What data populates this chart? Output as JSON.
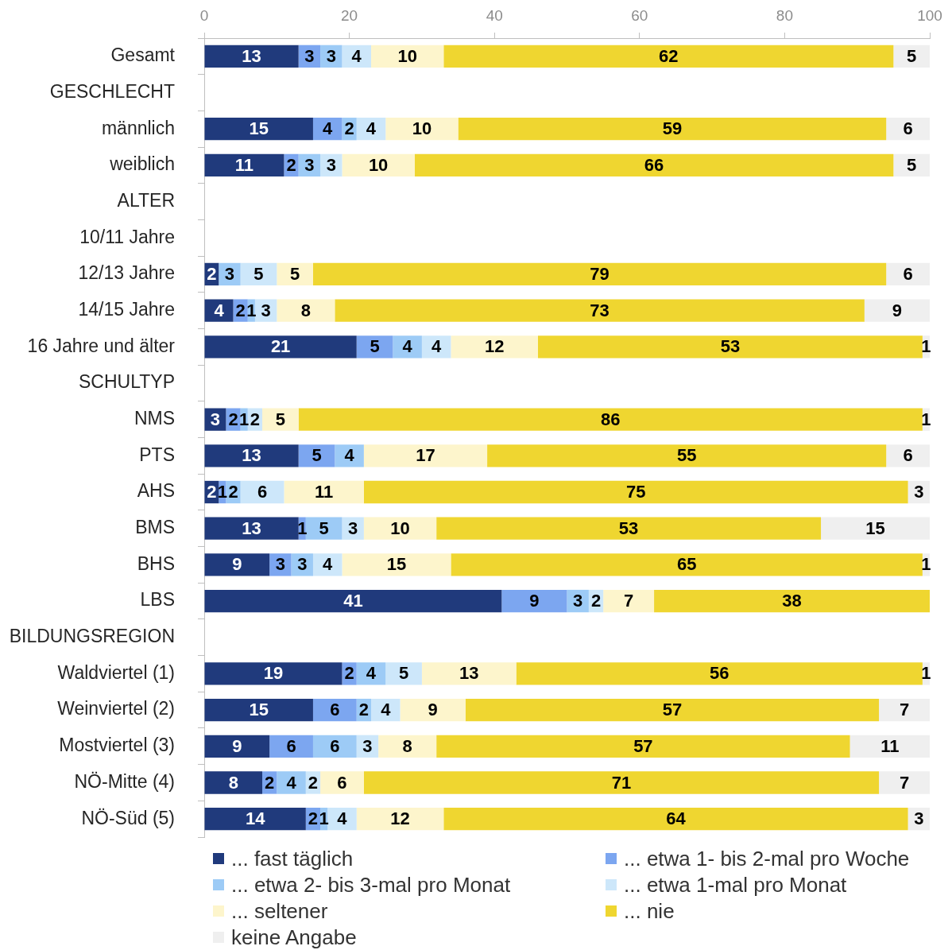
{
  "chart_data": {
    "type": "bar",
    "orientation": "horizontal",
    "stacked": true,
    "data_labels": true,
    "legend": "bottom",
    "categories": [
      "Gesamt",
      "GESCHLECHT",
      "männlich",
      "weiblich",
      "ALTER",
      "10/11 Jahre",
      "12/13 Jahre",
      "14/15 Jahre",
      "16 Jahre und älter",
      "SCHULTYP",
      "NMS",
      "PTS",
      "AHS",
      "BMS",
      "BHS",
      "LBS",
      "BILDUNGSREGION",
      "Waldviertel (1)",
      "Weinviertel (2)",
      "Mostviertel (3)",
      "NÖ-Mitte (4)",
      "NÖ-Süd (5)"
    ],
    "xlim": [
      0,
      100
    ],
    "xticks": [
      0,
      20,
      40,
      60,
      80,
      100
    ],
    "series": [
      {
        "name": "... fast täglich",
        "color": "#203a7c",
        "values": [
          13,
          null,
          15,
          11,
          null,
          null,
          2,
          4,
          21,
          null,
          3,
          13,
          2,
          13,
          9,
          41,
          null,
          19,
          15,
          9,
          8,
          14
        ]
      },
      {
        "name": "... etwa 1- bis 2-mal pro Woche",
        "color": "#7ca6f0",
        "values": [
          3,
          null,
          4,
          2,
          null,
          null,
          null,
          2,
          5,
          null,
          2,
          5,
          1,
          1,
          3,
          9,
          null,
          2,
          6,
          6,
          2,
          2
        ]
      },
      {
        "name": "... etwa 2- bis 3-mal pro Monat",
        "color": "#9dcbf6",
        "values": [
          3,
          null,
          2,
          3,
          null,
          null,
          3,
          1,
          4,
          null,
          1,
          4,
          2,
          5,
          3,
          3,
          null,
          4,
          2,
          6,
          4,
          1
        ]
      },
      {
        "name": "... etwa 1-mal pro Monat",
        "color": "#cde7fa",
        "values": [
          4,
          null,
          4,
          3,
          null,
          null,
          5,
          3,
          4,
          null,
          2,
          null,
          6,
          3,
          4,
          2,
          null,
          5,
          4,
          3,
          2,
          4
        ]
      },
      {
        "name": "... seltener",
        "color": "#fdf5cc",
        "values": [
          10,
          null,
          10,
          10,
          null,
          null,
          5,
          8,
          12,
          null,
          5,
          17,
          11,
          10,
          15,
          7,
          null,
          13,
          9,
          8,
          6,
          12
        ]
      },
      {
        "name": "... nie",
        "color": "#efd630",
        "values": [
          62,
          null,
          59,
          66,
          null,
          null,
          79,
          73,
          53,
          null,
          86,
          55,
          75,
          53,
          65,
          38,
          null,
          56,
          57,
          57,
          71,
          64
        ]
      },
      {
        "name": "keine Angabe",
        "color": "#efefef",
        "values": [
          5,
          null,
          6,
          5,
          null,
          null,
          6,
          9,
          1,
          null,
          1,
          6,
          3,
          15,
          1,
          null,
          null,
          1,
          7,
          11,
          7,
          3
        ]
      }
    ]
  }
}
